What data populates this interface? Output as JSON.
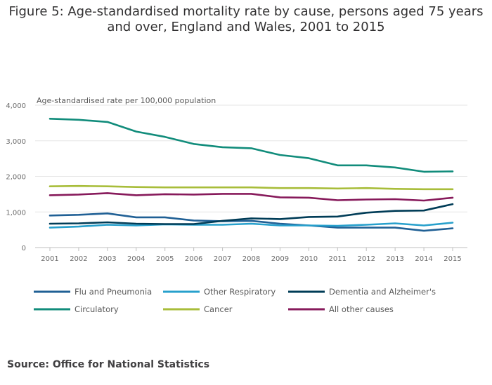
{
  "title_line1": "Figure 5: Age-standardised mortality rate by cause, persons aged 75 years",
  "title_line2": "and over, England and Wales, 2001 to 2015",
  "source": "Source: Office for National Statistics",
  "chart_data": {
    "type": "line",
    "title": "Figure 5: Age-standardised mortality rate by cause, persons aged 75 years and over, England and Wales, 2001 to 2015",
    "ylabel": "Age-standardised rate per 100,000 population",
    "xlabel": "",
    "ylim": [
      0,
      4000
    ],
    "yticks": [
      0,
      1000,
      2000,
      3000,
      4000
    ],
    "ytick_labels": [
      "0",
      "1,000",
      "2,000",
      "3,000",
      "4,000"
    ],
    "x": [
      "2001",
      "2002",
      "2003",
      "2004",
      "2005",
      "2006",
      "2007",
      "2008",
      "2009",
      "2010",
      "2011",
      "2012",
      "2013",
      "2014",
      "2015"
    ],
    "grid": "horizontal",
    "legend_position": "bottom",
    "series": [
      {
        "name": "Flu and Pneumonia",
        "color": "#206095",
        "values": [
          900,
          920,
          960,
          850,
          850,
          760,
          740,
          750,
          670,
          620,
          560,
          560,
          560,
          470,
          540
        ]
      },
      {
        "name": "Other Respiratory",
        "color": "#27a0cc",
        "values": [
          560,
          590,
          640,
          620,
          650,
          640,
          640,
          670,
          620,
          620,
          610,
          640,
          680,
          620,
          700
        ]
      },
      {
        "name": "Dementia and Alzheimer's",
        "color": "#003c57",
        "values": [
          670,
          680,
          710,
          670,
          660,
          660,
          750,
          820,
          800,
          860,
          870,
          980,
          1030,
          1040,
          1220
        ]
      },
      {
        "name": "Circulatory",
        "color": "#118c7b",
        "values": [
          3620,
          3590,
          3530,
          3260,
          3110,
          2910,
          2820,
          2790,
          2600,
          2510,
          2310,
          2310,
          2250,
          2130,
          2140
        ]
      },
      {
        "name": "Cancer",
        "color": "#a8bd3a",
        "values": [
          1720,
          1730,
          1720,
          1700,
          1690,
          1690,
          1690,
          1690,
          1670,
          1670,
          1660,
          1670,
          1650,
          1640,
          1640
        ]
      },
      {
        "name": "All other causes",
        "color": "#871a5b",
        "values": [
          1470,
          1490,
          1530,
          1470,
          1500,
          1490,
          1510,
          1510,
          1410,
          1400,
          1330,
          1350,
          1360,
          1320,
          1400
        ]
      }
    ]
  }
}
